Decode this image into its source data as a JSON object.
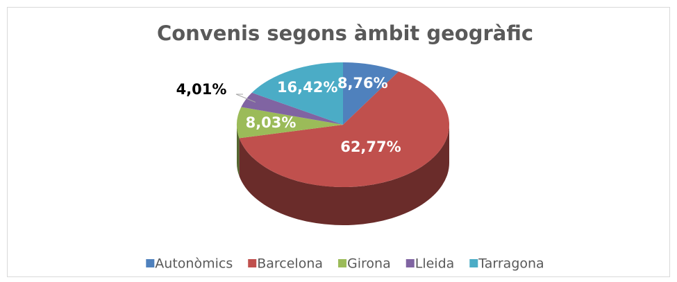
{
  "chart_data": {
    "type": "pie",
    "title": "Convenis segons àmbit geogràfic",
    "categories": [
      "Autonòmics",
      "Barcelona",
      "Girona",
      "Lleida",
      "Tarragona"
    ],
    "values": [
      8.76,
      62.77,
      8.03,
      4.01,
      16.42
    ],
    "value_labels": [
      "8,76%",
      "62,77%",
      "8,03%",
      "4,01%",
      "16,42%"
    ],
    "colors": [
      "#4f81bd",
      "#c0504d",
      "#9bbb59",
      "#8064a2",
      "#4bacc6"
    ],
    "legend": "bottom"
  }
}
